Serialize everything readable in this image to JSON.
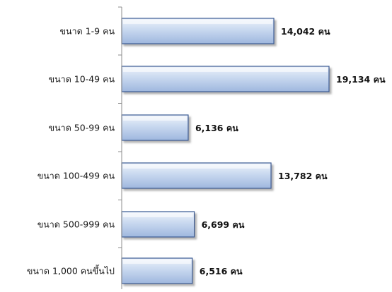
{
  "chart_data": {
    "type": "bar",
    "orientation": "horizontal",
    "categories": [
      "ขนาด 1-9 คน",
      "ขนาด 10-49 คน",
      "ขนาด 50-99 คน",
      "ขนาด 100-499 คน",
      "ขนาด 500-999 คน",
      "ขนาด 1,000 คนขึ้นไป"
    ],
    "values": [
      14042,
      19134,
      6136,
      13782,
      6699,
      6516
    ],
    "value_labels": [
      "14,042 คน",
      "19,134 คน",
      "6,136 คน",
      "13,782 คน",
      "6,699 คน",
      "6,516 คน"
    ],
    "xlim": [
      0,
      19500
    ],
    "grid": false,
    "legend": "none",
    "colors": {
      "bar_fill_light": "#eef3fb",
      "bar_fill_mid": "#c8d8ef",
      "bar_fill_dark": "#9fb7de",
      "bar_stroke": "#3b5a93",
      "bar_shadow": "#9a9a9a",
      "axis": "#8c8c8c"
    }
  }
}
